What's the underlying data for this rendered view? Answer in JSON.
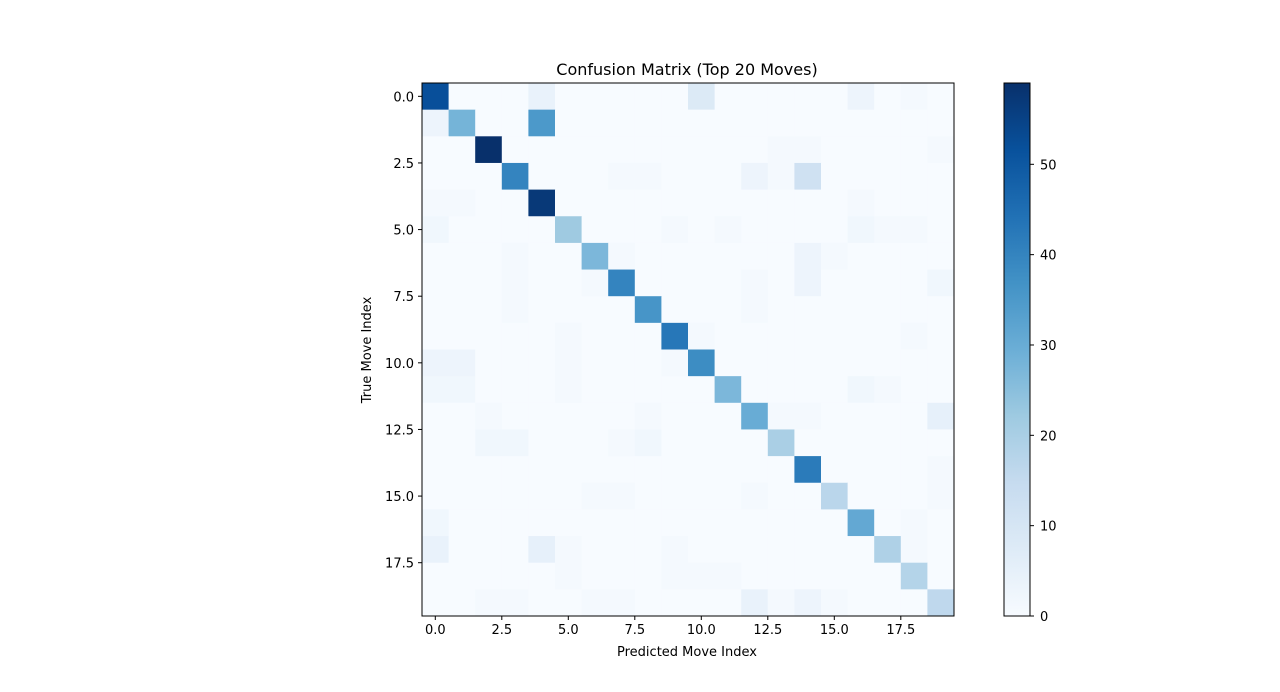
{
  "chart_data": {
    "type": "heatmap",
    "title": "Confusion Matrix (Top 20 Moves)",
    "xlabel": "Predicted Move Index",
    "ylabel": "True Move Index",
    "x_ticks": [
      0.0,
      2.5,
      5.0,
      7.5,
      10.0,
      12.5,
      15.0,
      17.5
    ],
    "y_ticks": [
      0.0,
      2.5,
      5.0,
      7.5,
      10.0,
      12.5,
      15.0,
      17.5
    ],
    "x_tick_labels": [
      "0.0",
      "2.5",
      "5.0",
      "7.5",
      "10.0",
      "12.5",
      "15.0",
      "17.5"
    ],
    "y_tick_labels": [
      "0.0",
      "2.5",
      "5.0",
      "7.5",
      "10.0",
      "12.5",
      "15.0",
      "17.5"
    ],
    "extent": [
      -0.5,
      19.5
    ],
    "colormap": "Blues",
    "colorbar": {
      "vmin": 0,
      "vmax": 59,
      "ticks": [
        0,
        10,
        20,
        30,
        40,
        50
      ],
      "tick_labels": [
        "0",
        "10",
        "20",
        "30",
        "40",
        "50"
      ]
    },
    "matrix": [
      [
        52,
        0,
        0,
        0,
        4,
        0,
        0,
        0,
        0,
        0,
        8,
        0,
        0,
        0,
        0,
        0,
        3,
        0,
        1,
        0
      ],
      [
        3,
        28,
        0,
        0,
        35,
        0,
        0,
        0,
        0,
        0,
        0,
        0,
        0,
        0,
        0,
        0,
        0,
        0,
        0,
        0
      ],
      [
        0,
        0,
        59,
        0,
        0,
        0,
        0,
        0,
        0,
        0,
        0,
        0,
        0,
        1,
        1,
        0,
        0,
        0,
        0,
        1
      ],
      [
        0,
        0,
        0,
        40,
        0,
        0,
        0,
        1,
        1,
        0,
        0,
        0,
        3,
        1,
        12,
        0,
        0,
        0,
        0,
        0
      ],
      [
        1,
        1,
        0,
        0,
        57,
        0,
        0,
        0,
        0,
        0,
        0,
        0,
        0,
        0,
        0,
        0,
        1,
        0,
        0,
        0
      ],
      [
        2,
        0,
        0,
        0,
        0,
        22,
        0,
        0,
        0,
        1,
        0,
        1,
        0,
        0,
        0,
        0,
        2,
        1,
        1,
        0
      ],
      [
        0,
        0,
        0,
        1,
        0,
        0,
        27,
        1,
        0,
        0,
        0,
        0,
        0,
        0,
        3,
        1,
        0,
        0,
        0,
        0
      ],
      [
        0,
        0,
        0,
        1,
        0,
        0,
        1,
        40,
        0,
        0,
        0,
        0,
        1,
        0,
        3,
        0,
        0,
        0,
        0,
        2
      ],
      [
        0,
        0,
        0,
        1,
        0,
        0,
        0,
        0,
        36,
        0,
        0,
        0,
        1,
        0,
        0,
        0,
        0,
        0,
        0,
        0
      ],
      [
        0,
        0,
        0,
        0,
        0,
        1,
        0,
        0,
        0,
        43,
        1,
        0,
        0,
        0,
        0,
        0,
        0,
        0,
        1,
        0
      ],
      [
        3,
        3,
        0,
        0,
        0,
        1,
        0,
        0,
        0,
        1,
        38,
        0,
        0,
        0,
        0,
        0,
        0,
        0,
        0,
        0
      ],
      [
        2,
        2,
        0,
        0,
        0,
        1,
        0,
        0,
        0,
        0,
        0,
        27,
        0,
        0,
        0,
        0,
        2,
        1,
        0,
        0
      ],
      [
        0,
        0,
        1,
        0,
        0,
        0,
        0,
        0,
        1,
        0,
        0,
        0,
        30,
        1,
        1,
        0,
        0,
        0,
        0,
        5
      ],
      [
        0,
        0,
        2,
        2,
        0,
        0,
        0,
        1,
        2,
        0,
        0,
        0,
        0,
        20,
        0,
        0,
        0,
        0,
        0,
        0
      ],
      [
        0,
        0,
        0,
        0,
        0,
        0,
        0,
        0,
        0,
        0,
        0,
        0,
        0,
        0,
        42,
        0,
        0,
        0,
        0,
        1
      ],
      [
        0,
        0,
        0,
        0,
        0,
        0,
        1,
        1,
        0,
        0,
        0,
        0,
        1,
        0,
        0,
        17,
        0,
        0,
        0,
        1
      ],
      [
        2,
        0,
        0,
        0,
        0,
        0,
        0,
        0,
        0,
        0,
        0,
        0,
        0,
        0,
        0,
        0,
        31,
        0,
        1,
        0
      ],
      [
        4,
        0,
        0,
        0,
        5,
        1,
        0,
        0,
        0,
        1,
        0,
        0,
        0,
        0,
        0,
        0,
        0,
        19,
        1,
        0
      ],
      [
        0,
        0,
        0,
        0,
        0,
        1,
        0,
        0,
        0,
        1,
        1,
        1,
        0,
        0,
        0,
        0,
        0,
        0,
        18,
        0
      ],
      [
        0,
        0,
        1,
        1,
        0,
        0,
        1,
        1,
        0,
        0,
        0,
        0,
        4,
        1,
        3,
        1,
        0,
        0,
        0,
        16
      ]
    ]
  }
}
